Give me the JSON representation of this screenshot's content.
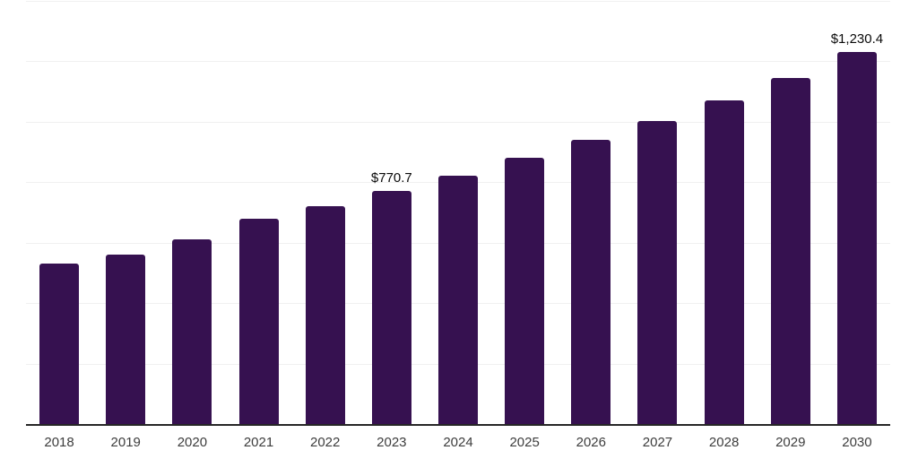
{
  "chart_data": {
    "type": "bar",
    "title": "",
    "xlabel": "",
    "ylabel": "",
    "categories": [
      "2018",
      "2019",
      "2020",
      "2021",
      "2022",
      "2023",
      "2024",
      "2025",
      "2026",
      "2027",
      "2028",
      "2029",
      "2030"
    ],
    "values": [
      530,
      562,
      612,
      680,
      722,
      770.7,
      822,
      880,
      940,
      1002,
      1070,
      1145,
      1230.4
    ],
    "visible_value_labels": {
      "2023": "$770.7",
      "2030": "$1,230.4"
    },
    "ylim": [
      0,
      1400
    ],
    "gridline_step": 200,
    "grid": "horizontal, y tick labels hidden",
    "legend": "none",
    "bar_color": "#361150",
    "axis_line_color": "#262626",
    "gridline_color": "#f0f0f0",
    "tick_label_color": "#3d3d3d",
    "value_label_color": "#0a0a0a"
  }
}
